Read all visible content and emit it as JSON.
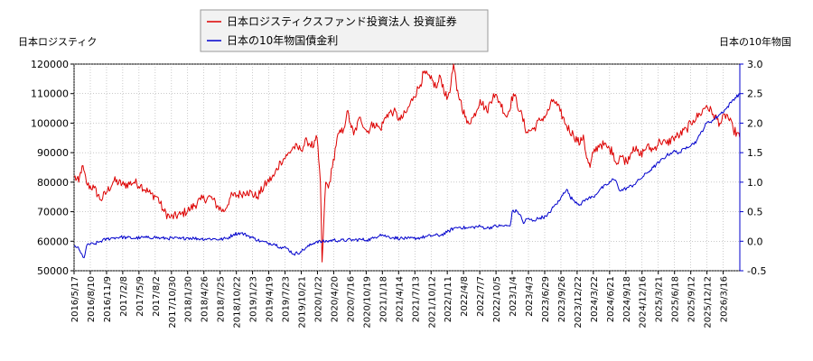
{
  "chart_data": {
    "type": "line",
    "legend": [
      "日本ロジスティクスファンド投資法人 投資証券",
      "日本の10年物国債金利"
    ],
    "y_left_label": "日本ロジスティク",
    "y_right_label": "日本の10年物国",
    "y_left_ticks": [
      "50000",
      "60000",
      "70000",
      "80000",
      "90000",
      "100000",
      "110000",
      "120000"
    ],
    "y_right_ticks": [
      "-0.5",
      "0.0",
      "0.5",
      "1.0",
      "1.5",
      "2.0",
      "2.5",
      "3.0"
    ],
    "ylim_left": [
      50000,
      120000
    ],
    "ylim_right": [
      -0.5,
      3.0
    ],
    "x_ticks": [
      "2016/5/17",
      "2016/8/10",
      "2016/11/9",
      "2017/2/8",
      "2017/5/9",
      "2017/8/2",
      "2017/10/30",
      "2018/1/30",
      "2018/4/26",
      "2018/7/25",
      "2018/10/22",
      "2019/1/23",
      "2019/4/19",
      "2019/7/23",
      "2019/10/21",
      "2020/1/22",
      "2020/4/20",
      "2020/7/16",
      "2020/10/19",
      "2021/1/18",
      "2021/4/14",
      "2021/7/13",
      "2021/10/12",
      "2022/1/11",
      "2022/4/8",
      "2022/7/7",
      "2022/10/5",
      "2023/1/4",
      "2023/4/3",
      "2023/6/29",
      "2023/9/26",
      "2023/12/22",
      "2024/3/22",
      "2024/6/21",
      "2024/9/18",
      "2024/12/16",
      "2025/3/21",
      "2025/6/18",
      "2025/9/12",
      "2025/12/12",
      "2026/3/16"
    ],
    "x_tick_pos": [
      0,
      0.0244,
      0.0488,
      0.0731,
      0.0975,
      0.1219,
      0.1463,
      0.1706,
      0.195,
      0.2194,
      0.2438,
      0.2681,
      0.2925,
      0.3169,
      0.3413,
      0.3656,
      0.39,
      0.4144,
      0.4388,
      0.4631,
      0.4875,
      0.5119,
      0.5363,
      0.5606,
      0.585,
      0.6094,
      0.6338,
      0.6581,
      0.6825,
      0.7069,
      0.7313,
      0.7556,
      0.78,
      0.8044,
      0.8288,
      0.8531,
      0.8775,
      0.9019,
      0.9263,
      0.9506,
      0.975
    ],
    "series": [
      {
        "name": "日本ロジスティクスファンド投資法人 投資証券",
        "color": "#dd0000",
        "axis": "left",
        "points": [
          [
            0,
            82000
          ],
          [
            0.007,
            80000
          ],
          [
            0.012,
            85500
          ],
          [
            0.02,
            79000
          ],
          [
            0.03,
            78000
          ],
          [
            0.04,
            74000
          ],
          [
            0.05,
            77000
          ],
          [
            0.06,
            80500
          ],
          [
            0.075,
            79000
          ],
          [
            0.09,
            80000
          ],
          [
            0.1,
            79000
          ],
          [
            0.115,
            76000
          ],
          [
            0.125,
            75000
          ],
          [
            0.135,
            70000
          ],
          [
            0.145,
            68000
          ],
          [
            0.16,
            69000
          ],
          [
            0.175,
            71000
          ],
          [
            0.19,
            74000
          ],
          [
            0.205,
            75000
          ],
          [
            0.215,
            72000
          ],
          [
            0.225,
            70000
          ],
          [
            0.235,
            75000
          ],
          [
            0.25,
            76000
          ],
          [
            0.26,
            77000
          ],
          [
            0.275,
            75000
          ],
          [
            0.29,
            80000
          ],
          [
            0.3,
            82000
          ],
          [
            0.31,
            87000
          ],
          [
            0.32,
            89000
          ],
          [
            0.33,
            92000
          ],
          [
            0.34,
            91000
          ],
          [
            0.35,
            94000
          ],
          [
            0.36,
            92000
          ],
          [
            0.365,
            95000
          ],
          [
            0.37,
            80000
          ],
          [
            0.3725,
            53000
          ],
          [
            0.375,
            66000
          ],
          [
            0.378,
            80000
          ],
          [
            0.382,
            78000
          ],
          [
            0.388,
            85000
          ],
          [
            0.395,
            95000
          ],
          [
            0.405,
            98000
          ],
          [
            0.41,
            104000
          ],
          [
            0.415,
            100000
          ],
          [
            0.42,
            96000
          ],
          [
            0.43,
            102000
          ],
          [
            0.44,
            97000
          ],
          [
            0.45,
            100000
          ],
          [
            0.46,
            98000
          ],
          [
            0.47,
            103000
          ],
          [
            0.48,
            104000
          ],
          [
            0.49,
            101000
          ],
          [
            0.5,
            104000
          ],
          [
            0.51,
            109000
          ],
          [
            0.52,
            113000
          ],
          [
            0.525,
            117000
          ],
          [
            0.535,
            115000
          ],
          [
            0.545,
            112000
          ],
          [
            0.55,
            116000
          ],
          [
            0.56,
            108000
          ],
          [
            0.566,
            113000
          ],
          [
            0.57,
            120000
          ],
          [
            0.575,
            111000
          ],
          [
            0.58,
            108000
          ],
          [
            0.59,
            100000
          ],
          [
            0.6,
            102000
          ],
          [
            0.61,
            108000
          ],
          [
            0.62,
            104000
          ],
          [
            0.63,
            110000
          ],
          [
            0.64,
            107000
          ],
          [
            0.65,
            102000
          ],
          [
            0.66,
            110000
          ],
          [
            0.67,
            104000
          ],
          [
            0.68,
            97000
          ],
          [
            0.69,
            98000
          ],
          [
            0.7,
            101000
          ],
          [
            0.71,
            103000
          ],
          [
            0.72,
            108000
          ],
          [
            0.73,
            104000
          ],
          [
            0.74,
            99000
          ],
          [
            0.75,
            96000
          ],
          [
            0.76,
            93000
          ],
          [
            0.765,
            96000
          ],
          [
            0.77,
            88000
          ],
          [
            0.775,
            85000
          ],
          [
            0.78,
            90000
          ],
          [
            0.79,
            93000
          ],
          [
            0.8,
            92000
          ],
          [
            0.81,
            90000
          ],
          [
            0.815,
            86000
          ],
          [
            0.82,
            89000
          ],
          [
            0.83,
            87000
          ],
          [
            0.84,
            92000
          ],
          [
            0.85,
            89000
          ],
          [
            0.86,
            92000
          ],
          [
            0.87,
            91000
          ],
          [
            0.88,
            94000
          ],
          [
            0.89,
            93000
          ],
          [
            0.9,
            95000
          ],
          [
            0.91,
            96000
          ],
          [
            0.92,
            98000
          ],
          [
            0.93,
            101000
          ],
          [
            0.94,
            103000
          ],
          [
            0.95,
            106000
          ],
          [
            0.96,
            103000
          ],
          [
            0.97,
            100000
          ],
          [
            0.98,
            103000
          ],
          [
            0.99,
            98000
          ],
          [
            1.0,
            95000
          ]
        ]
      },
      {
        "name": "日本の10年物国債金利",
        "color": "#0000cc",
        "axis": "right",
        "points": [
          [
            0,
            -0.08
          ],
          [
            0.005,
            -0.1
          ],
          [
            0.01,
            -0.2
          ],
          [
            0.015,
            -0.28
          ],
          [
            0.02,
            -0.05
          ],
          [
            0.03,
            -0.05
          ],
          [
            0.04,
            0.0
          ],
          [
            0.05,
            0.04
          ],
          [
            0.06,
            0.06
          ],
          [
            0.07,
            0.07
          ],
          [
            0.08,
            0.06
          ],
          [
            0.09,
            0.05
          ],
          [
            0.1,
            0.06
          ],
          [
            0.11,
            0.06
          ],
          [
            0.12,
            0.07
          ],
          [
            0.13,
            0.05
          ],
          [
            0.14,
            0.05
          ],
          [
            0.15,
            0.05
          ],
          [
            0.16,
            0.04
          ],
          [
            0.17,
            0.06
          ],
          [
            0.18,
            0.05
          ],
          [
            0.19,
            0.04
          ],
          [
            0.2,
            0.04
          ],
          [
            0.21,
            0.04
          ],
          [
            0.22,
            0.03
          ],
          [
            0.23,
            0.05
          ],
          [
            0.24,
            0.12
          ],
          [
            0.25,
            0.14
          ],
          [
            0.26,
            0.1
          ],
          [
            0.27,
            0.05
          ],
          [
            0.28,
            0.0
          ],
          [
            0.29,
            -0.03
          ],
          [
            0.3,
            -0.04
          ],
          [
            0.31,
            -0.1
          ],
          [
            0.32,
            -0.12
          ],
          [
            0.33,
            -0.22
          ],
          [
            0.34,
            -0.18
          ],
          [
            0.35,
            -0.1
          ],
          [
            0.36,
            -0.03
          ],
          [
            0.365,
            0.0
          ],
          [
            0.37,
            -0.01
          ],
          [
            0.38,
            0.0
          ],
          [
            0.39,
            0.02
          ],
          [
            0.4,
            0.01
          ],
          [
            0.41,
            0.02
          ],
          [
            0.42,
            0.02
          ],
          [
            0.43,
            0.03
          ],
          [
            0.44,
            0.02
          ],
          [
            0.45,
            0.05
          ],
          [
            0.46,
            0.12
          ],
          [
            0.47,
            0.08
          ],
          [
            0.48,
            0.06
          ],
          [
            0.49,
            0.05
          ],
          [
            0.5,
            0.04
          ],
          [
            0.51,
            0.05
          ],
          [
            0.52,
            0.06
          ],
          [
            0.53,
            0.08
          ],
          [
            0.54,
            0.1
          ],
          [
            0.55,
            0.1
          ],
          [
            0.56,
            0.15
          ],
          [
            0.57,
            0.22
          ],
          [
            0.58,
            0.24
          ],
          [
            0.59,
            0.22
          ],
          [
            0.6,
            0.24
          ],
          [
            0.61,
            0.25
          ],
          [
            0.62,
            0.22
          ],
          [
            0.63,
            0.25
          ],
          [
            0.64,
            0.26
          ],
          [
            0.65,
            0.26
          ],
          [
            0.655,
            0.26
          ],
          [
            0.658,
            0.5
          ],
          [
            0.665,
            0.51
          ],
          [
            0.67,
            0.45
          ],
          [
            0.675,
            0.3
          ],
          [
            0.68,
            0.38
          ],
          [
            0.69,
            0.35
          ],
          [
            0.7,
            0.4
          ],
          [
            0.71,
            0.42
          ],
          [
            0.72,
            0.58
          ],
          [
            0.73,
            0.7
          ],
          [
            0.735,
            0.82
          ],
          [
            0.74,
            0.88
          ],
          [
            0.745,
            0.75
          ],
          [
            0.75,
            0.7
          ],
          [
            0.76,
            0.62
          ],
          [
            0.77,
            0.72
          ],
          [
            0.78,
            0.75
          ],
          [
            0.79,
            0.88
          ],
          [
            0.8,
            0.95
          ],
          [
            0.81,
            1.05
          ],
          [
            0.815,
            1.0
          ],
          [
            0.82,
            0.85
          ],
          [
            0.83,
            0.9
          ],
          [
            0.84,
            0.95
          ],
          [
            0.85,
            1.05
          ],
          [
            0.86,
            1.15
          ],
          [
            0.87,
            1.25
          ],
          [
            0.88,
            1.35
          ],
          [
            0.89,
            1.45
          ],
          [
            0.9,
            1.52
          ],
          [
            0.91,
            1.5
          ],
          [
            0.92,
            1.6
          ],
          [
            0.93,
            1.65
          ],
          [
            0.935,
            1.7
          ],
          [
            0.94,
            1.8
          ],
          [
            0.95,
            2.0
          ],
          [
            0.96,
            2.05
          ],
          [
            0.97,
            2.15
          ],
          [
            0.98,
            2.25
          ],
          [
            0.99,
            2.4
          ],
          [
            1.0,
            2.5
          ]
        ]
      }
    ]
  }
}
